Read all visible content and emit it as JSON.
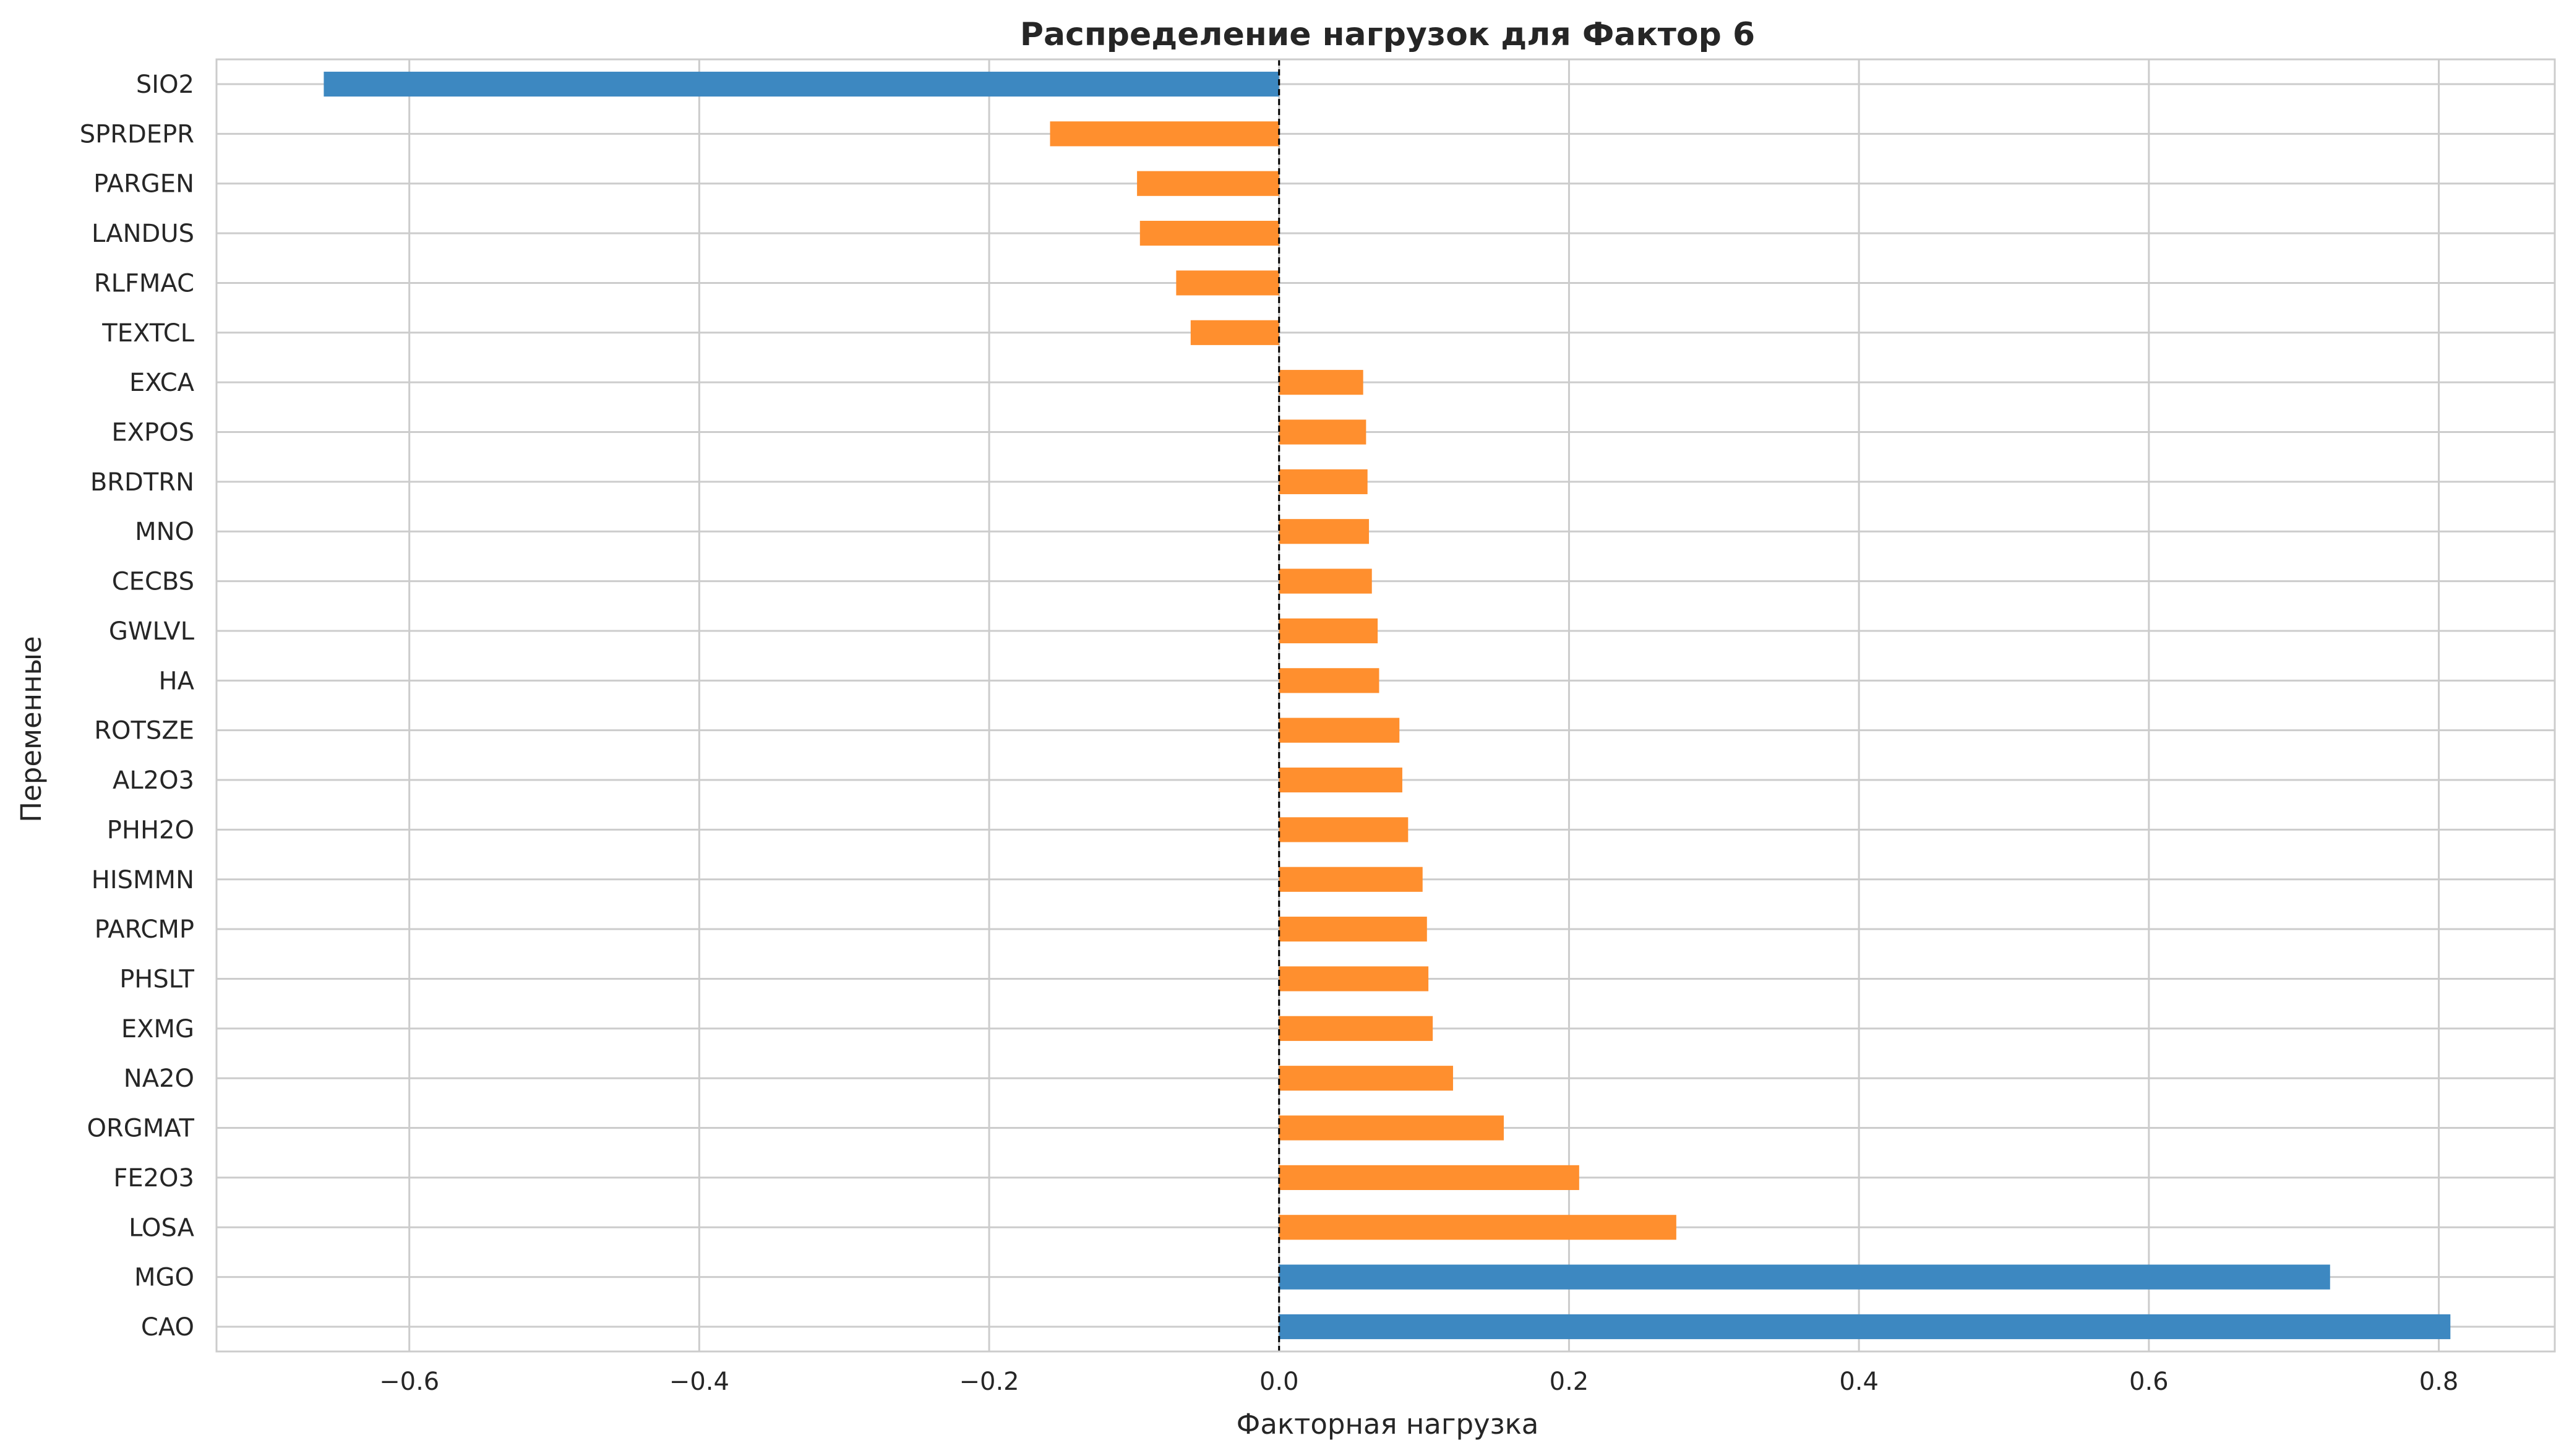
{
  "chart_data": {
    "type": "bar",
    "orientation": "horizontal",
    "title": "Распределение нагрузок для Фактор 6",
    "xlabel": "Факторная нагрузка",
    "ylabel": "Переменные",
    "xlim": [
      -0.733,
      0.88
    ],
    "xticks": [
      -0.6,
      -0.4,
      -0.2,
      0.0,
      0.2,
      0.4,
      0.6,
      0.8
    ],
    "xtick_labels": [
      "−0.6",
      "−0.4",
      "−0.2",
      "0.0",
      "0.2",
      "0.4",
      "0.6",
      "0.8"
    ],
    "grid": true,
    "reference_line": 0,
    "categories": [
      "SIO2",
      "SPRDEPR",
      "PARGEN",
      "LANDUS",
      "RLFMAC",
      "TEXTCL",
      "EXCA",
      "EXPOS",
      "BRDTRN",
      "MNO",
      "CECBS",
      "GWLVL",
      "HA",
      "ROTSZE",
      "AL2O3",
      "PHH2O",
      "HISMMN",
      "PARCMP",
      "PHSLT",
      "EXMG",
      "NA2O",
      "ORGMAT",
      "FE2O3",
      "LOSA",
      "MGO",
      "CAO"
    ],
    "values": [
      -0.659,
      -0.158,
      -0.098,
      -0.096,
      -0.071,
      -0.061,
      0.058,
      0.06,
      0.061,
      0.062,
      0.064,
      0.068,
      0.069,
      0.083,
      0.085,
      0.089,
      0.099,
      0.102,
      0.103,
      0.106,
      0.12,
      0.155,
      0.207,
      0.274,
      0.725,
      0.808
    ],
    "highlight": [
      true,
      false,
      false,
      false,
      false,
      false,
      false,
      false,
      false,
      false,
      false,
      false,
      false,
      false,
      false,
      false,
      false,
      false,
      false,
      false,
      false,
      false,
      false,
      false,
      true,
      true
    ],
    "colors": {
      "highlight": "#3d88c1",
      "normal": "#ff8f2e",
      "grid": "#cccccc",
      "spine": "#cccccc",
      "zero_line": "#000000"
    }
  }
}
